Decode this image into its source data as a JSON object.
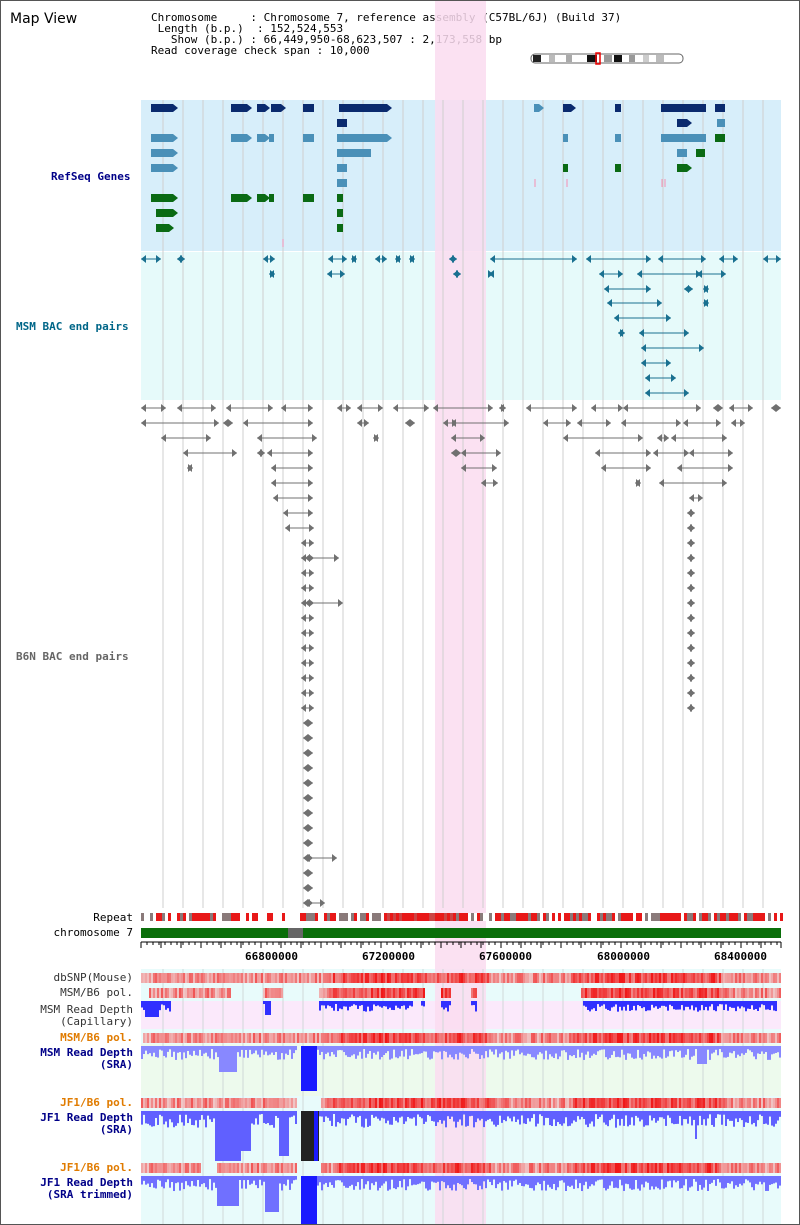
{
  "title": "Map View",
  "info": {
    "chromosome_label": "Chromosome",
    "chromosome_value": "Chromosome 7, reference assembly (C57BL/6J) (Build 37)",
    "length_label": "Length (b.p.)",
    "length_value": "152,524,553",
    "show_label": "Show (b.p.)",
    "show_value": "66,449,950-68,623,507 : 2,173,558 bp",
    "coverage_label": "Read coverage check span",
    "coverage_value": "10,000"
  },
  "tracks": {
    "refseq": "RefSeq Genes",
    "msm_bac": "MSM BAC end pairs",
    "b6n_bac": "B6N BAC end pairs",
    "repeat": "Repeat",
    "chromosome": "chromosome 7",
    "dbsnp": "dbSNP(Mouse)",
    "msm_pol_1": "MSM/B6 pol.",
    "msm_depth_cap_1": "MSM Read Depth",
    "msm_depth_cap_2": "(Capillary)",
    "msm_pol_2": "MSM/B6 pol.",
    "msm_depth_sra_1": "MSM Read Depth",
    "msm_depth_sra_2": "(SRA)",
    "jf1_pol_1": "JF1/B6 pol.",
    "jf1_depth_1": "JF1 Read Depth",
    "jf1_depth_2": "(SRA)",
    "jf1_pol_2": "JF1/B6 pol.",
    "jf1_trim_1": "JF1 Read Depth",
    "jf1_trim_2": "(SRA trimmed)"
  },
  "axis": {
    "ticks": [
      "66800000",
      "67200000",
      "67600000",
      "68000000",
      "68400000"
    ]
  },
  "colors": {
    "refseq_bg": "#d7eefa",
    "msm_bg": "#e6fafa",
    "highlight": "#fadcf0",
    "gene_dark": "#0a2a6e",
    "gene_mid": "#4a90b8",
    "gene_green": "#0a6a14",
    "msm_pair": "#1a7090",
    "b6n_pair": "#707070",
    "chromosome_bar": "#0a6e0a",
    "depth_blue": "#2a2aff",
    "depth_light": "#8a8aff",
    "pol_red": "#e81818",
    "label_orange": "#e07b00",
    "label_navy": "#000088",
    "label_teal": "#006688"
  }
}
